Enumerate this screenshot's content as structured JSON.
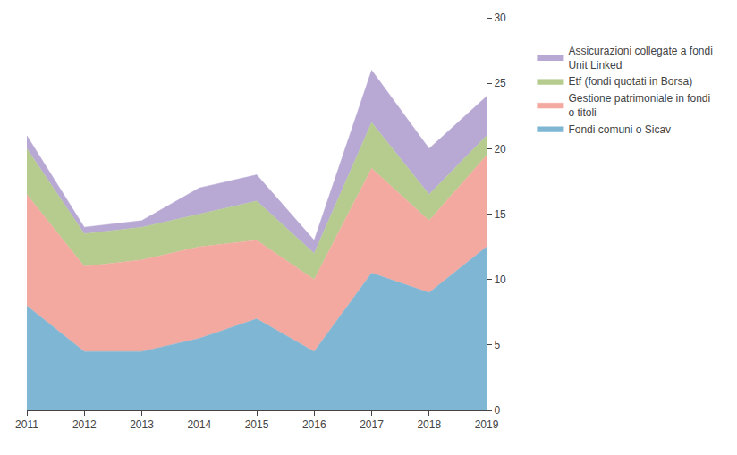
{
  "chart_data": {
    "type": "area",
    "stacked": true,
    "x": [
      2011,
      2012,
      2013,
      2014,
      2015,
      2016,
      2017,
      2018,
      2019
    ],
    "series": [
      {
        "name": "Fondi comuni o Sicav",
        "color": "#7eb6d4",
        "values": [
          8.0,
          4.5,
          4.5,
          5.5,
          7.0,
          4.5,
          10.5,
          9.0,
          12.5
        ]
      },
      {
        "name": "Gestione patrimoniale in fondi\no titoli",
        "color": "#f4a9a0",
        "values": [
          8.5,
          6.5,
          7.0,
          7.0,
          6.0,
          5.5,
          8.0,
          5.5,
          7.0
        ]
      },
      {
        "name": "Etf (fondi quotati in Borsa)",
        "color": "#b5cc8e",
        "values": [
          3.5,
          2.5,
          2.5,
          2.5,
          3.0,
          2.0,
          3.5,
          2.0,
          1.5
        ]
      },
      {
        "name": "Assicurazioni collegate a fondi\nUnit Linked",
        "color": "#b8a9d4",
        "values": [
          1.0,
          0.5,
          0.5,
          2.0,
          2.0,
          1.0,
          4.0,
          3.5,
          3.0
        ]
      }
    ],
    "xlim": [
      2011,
      2019
    ],
    "xticks": [
      2011,
      2012,
      2013,
      2014,
      2015,
      2016,
      2017,
      2018,
      2019
    ],
    "ylim": [
      0,
      30
    ],
    "yticks": [
      0,
      5,
      10,
      15,
      20,
      25,
      30
    ],
    "grid": false
  }
}
